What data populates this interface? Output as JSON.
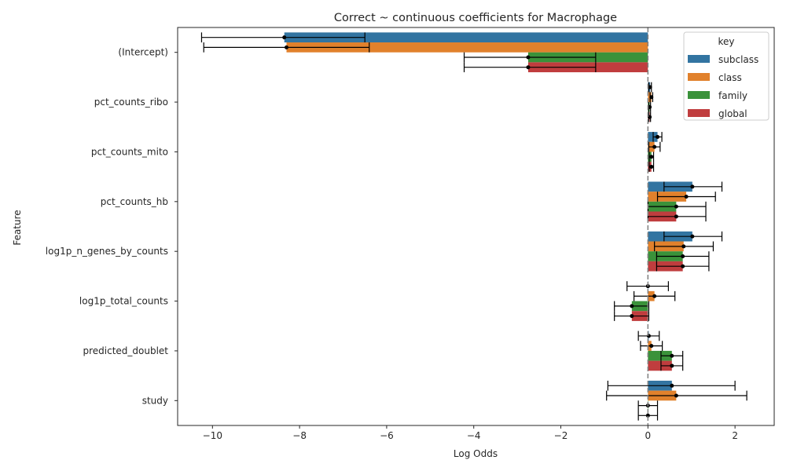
{
  "chart_data": {
    "type": "bar",
    "orientation": "horizontal",
    "title": "Correct ~ continuous coefficients for Macrophage",
    "xlabel": "Log Odds",
    "ylabel": "Feature",
    "xlim": [
      -10.8,
      2.9
    ],
    "xticks": [
      -10,
      -8,
      -6,
      -4,
      -2,
      0,
      2
    ],
    "reference_line": {
      "x": 0,
      "style": "dashed",
      "color": "#808080"
    },
    "legend": {
      "title": "key",
      "placement": "top-right"
    },
    "categories": [
      "(Intercept)",
      "pct_counts_ribo",
      "pct_counts_mito",
      "pct_counts_hb",
      "log1p_n_genes_by_counts",
      "log1p_total_counts",
      "predicted_doublet",
      "study"
    ],
    "series": [
      {
        "name": "subclass",
        "color": "#3274a1",
        "values": [
          -8.35,
          0.05,
          0.22,
          1.02,
          1.02,
          0.0,
          0.02,
          0.55
        ],
        "ci_low": [
          -10.25,
          0.02,
          0.12,
          0.37,
          0.37,
          -0.48,
          -0.22,
          -0.92
        ],
        "ci_high": [
          -6.5,
          0.08,
          0.32,
          1.7,
          1.7,
          0.47,
          0.26,
          2.0
        ]
      },
      {
        "name": "class",
        "color": "#e1812c",
        "values": [
          -8.3,
          0.08,
          0.15,
          0.88,
          0.82,
          0.15,
          0.08,
          0.65
        ],
        "ci_low": [
          -10.2,
          0.05,
          0.02,
          0.22,
          0.15,
          -0.32,
          -0.17,
          -0.95
        ],
        "ci_high": [
          -6.4,
          0.11,
          0.28,
          1.55,
          1.5,
          0.62,
          0.33,
          2.27
        ]
      },
      {
        "name": "family",
        "color": "#3a923a",
        "values": [
          -2.75,
          0.04,
          0.08,
          0.65,
          0.8,
          -0.37,
          0.55,
          0.0
        ],
        "ci_low": [
          -4.22,
          0.02,
          0.03,
          0.0,
          0.2,
          -0.77,
          0.3,
          -0.22
        ],
        "ci_high": [
          -1.2,
          0.06,
          0.13,
          1.33,
          1.4,
          0.02,
          0.8,
          0.22
        ]
      },
      {
        "name": "global",
        "color": "#c03d3e",
        "values": [
          -2.75,
          0.04,
          0.08,
          0.65,
          0.8,
          -0.37,
          0.55,
          0.0
        ],
        "ci_low": [
          -4.22,
          0.02,
          0.03,
          0.0,
          0.2,
          -0.77,
          0.3,
          -0.22
        ],
        "ci_high": [
          -1.2,
          0.06,
          0.13,
          1.33,
          1.4,
          0.02,
          0.8,
          0.22
        ]
      }
    ]
  }
}
